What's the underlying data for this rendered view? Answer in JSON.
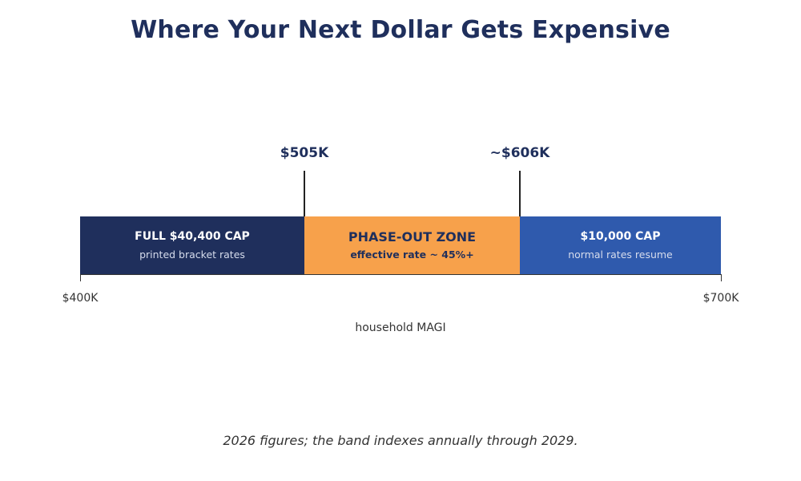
{
  "title": "Where Your Next Dollar Gets Expensive",
  "axis": {
    "min_label": "$400K",
    "max_label": "$700K",
    "label": "household MAGI",
    "min_value": 400,
    "max_value": 700
  },
  "markers": [
    {
      "label": "$505K",
      "value": 505
    },
    {
      "label": "~$606K",
      "value": 606
    }
  ],
  "segments": [
    {
      "title": "FULL $40,400 CAP",
      "subtitle": "printed bracket rates",
      "from": 400,
      "to": 505,
      "color": "#1f2f5c"
    },
    {
      "title": "PHASE-OUT ZONE",
      "subtitle": "effective rate ~ 45%+",
      "from": 505,
      "to": 606,
      "color": "#f7a14b"
    },
    {
      "title": "$10,000 CAP",
      "subtitle": "normal rates resume",
      "from": 606,
      "to": 700,
      "color": "#2f5aad"
    }
  ],
  "footnote": "2026 figures; the band indexes annually through 2029."
}
